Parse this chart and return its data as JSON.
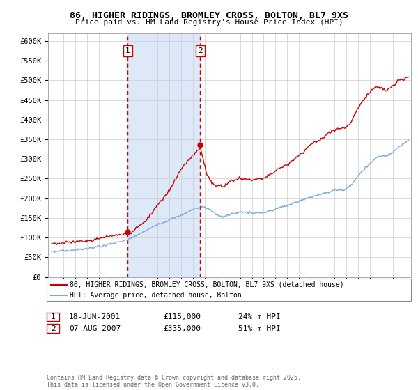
{
  "title1": "86, HIGHER RIDINGS, BROMLEY CROSS, BOLTON, BL7 9XS",
  "title2": "Price paid vs. HM Land Registry's House Price Index (HPI)",
  "legend1": "86, HIGHER RIDINGS, BROMLEY CROSS, BOLTON, BL7 9XS (detached house)",
  "legend2": "HPI: Average price, detached house, Bolton",
  "annotation1_date": "18-JUN-2001",
  "annotation1_price": "£115,000",
  "annotation1_hpi": "24% ↑ HPI",
  "annotation1_year": 2001.46,
  "annotation1_value": 115000,
  "annotation2_date": "07-AUG-2007",
  "annotation2_price": "£335,000",
  "annotation2_hpi": "51% ↑ HPI",
  "annotation2_year": 2007.6,
  "annotation2_value": 335000,
  "ylim": [
    0,
    620000
  ],
  "yticks": [
    0,
    50000,
    100000,
    150000,
    200000,
    250000,
    300000,
    350000,
    400000,
    450000,
    500000,
    550000,
    600000
  ],
  "red_color": "#cc0000",
  "blue_color": "#7aaadd",
  "shade_color": "#dde8f8",
  "grid_color": "#cccccc",
  "footnote": "Contains HM Land Registry data © Crown copyright and database right 2025.\nThis data is licensed under the Open Government Licence v3.0."
}
